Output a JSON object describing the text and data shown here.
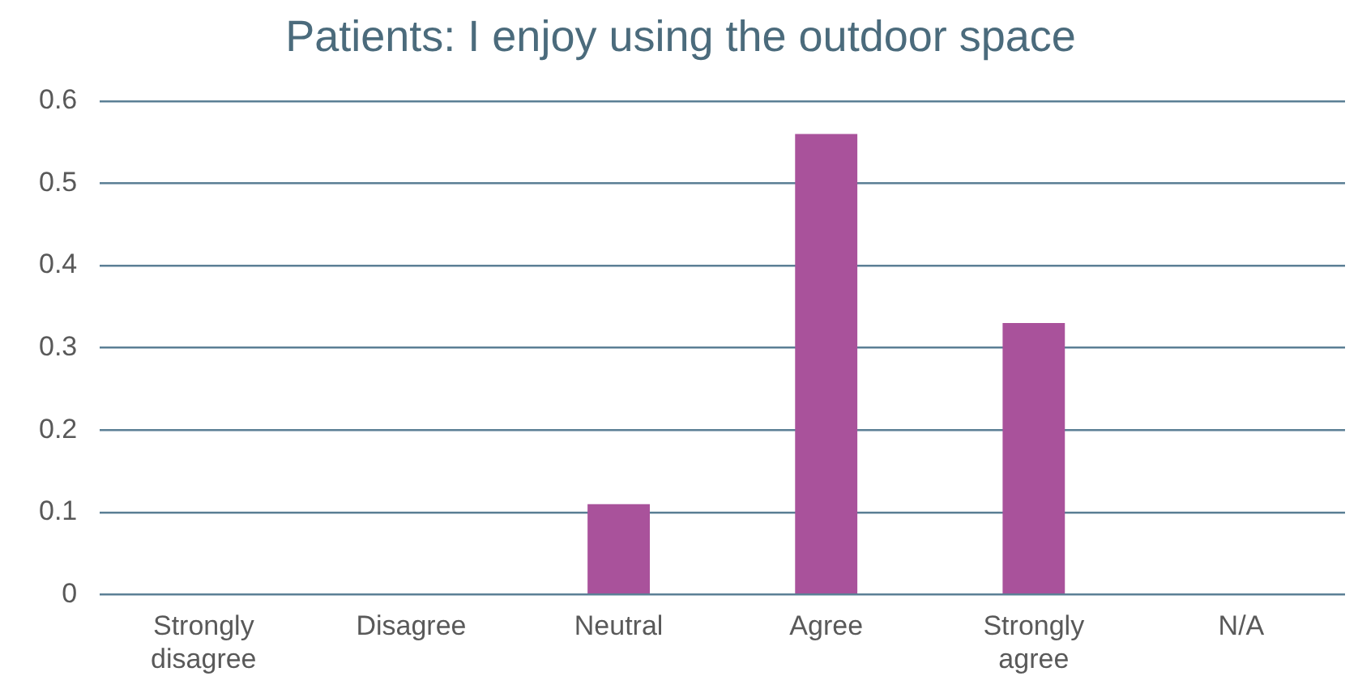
{
  "chart_data": {
    "type": "bar",
    "title": "Patients: I enjoy using the outdoor space",
    "categories": [
      "Strongly disagree",
      "Disagree",
      "Neutral",
      "Agree",
      "Strongly agree",
      "N/A"
    ],
    "values": [
      0,
      0,
      0.11,
      0.56,
      0.33,
      0
    ],
    "color": "#a9529b",
    "ylim": [
      0,
      0.6
    ],
    "yticks": [
      0,
      0.1,
      0.2,
      0.3,
      0.4,
      0.5,
      0.6
    ],
    "grid": "y",
    "legend": false
  }
}
